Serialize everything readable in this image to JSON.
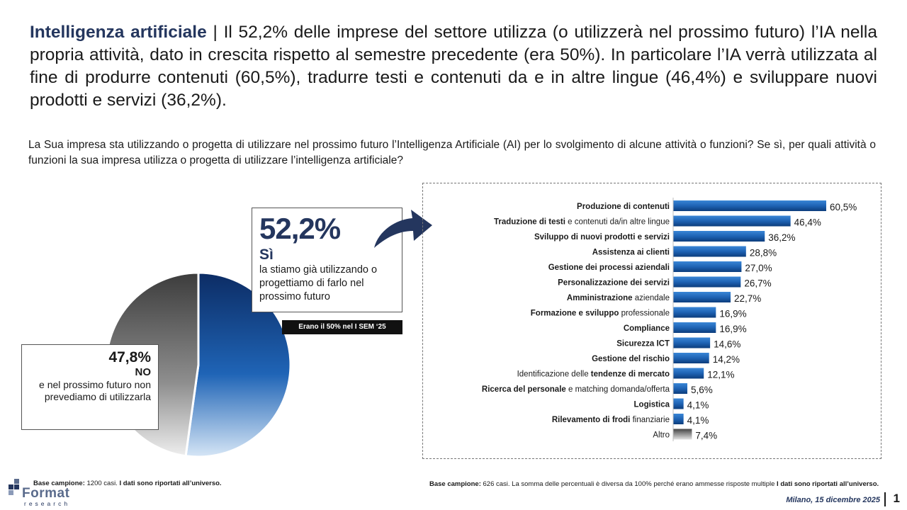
{
  "headline": {
    "keyword": "Intelligenza artificiale",
    "separator": " | ",
    "text": "Il 52,2% delle imprese del settore utilizza (o utilizzerà nel prossimo futuro) l’IA nella propria attività, dato in crescita rispetto al semestre precedente (era 50%). In particolare l’IA verrà utilizzata al fine di produrre contenuti (60,5%), tradurre testi e contenuti da e in altre lingue (46,4%) e sviluppare nuovi prodotti e servizi (36,2%)."
  },
  "question": "La Sua impresa sta utilizzando o progetta di utilizzare nel prossimo futuro l’Intelligenza Artificiale (AI) per lo svolgimento di alcune attività o funzioni? Se sì, per quali attività o funzioni la sua impresa utilizza o progetta di utilizzare l’intelligenza artificiale?",
  "yes_box": {
    "pct": "52,2%",
    "label": "Sì",
    "text": "la stiamo già utilizzando o progettiamo di farlo nel prossimo futuro"
  },
  "note": "Erano il 50% nel I SEM ‘25",
  "no_box": {
    "pct": "47,8%",
    "label": "NO",
    "text": "e nel prossimo futuro non prevediamo di utilizzarla"
  },
  "colors": {
    "dark_blue": "#24365e",
    "bar_blue": "#1e63b4",
    "pie_yes_dark": "#0c2c64",
    "pie_no_dark": "#3c3c3c"
  },
  "chart_data": [
    {
      "type": "pie",
      "slices": [
        {
          "label": "Sì",
          "value": 52.2
        },
        {
          "label": "NO",
          "value": 47.8
        }
      ]
    },
    {
      "type": "bar",
      "orientation": "horizontal",
      "xlim": [
        0,
        60.5
      ],
      "categories": [
        {
          "bold": "Produzione di contenuti",
          "rest": ""
        },
        {
          "bold": "Traduzione di testi",
          "rest": " e contenuti da/in altre lingue"
        },
        {
          "bold": "Sviluppo di nuovi prodotti e servizi",
          "rest": ""
        },
        {
          "bold": "Assistenza ai clienti",
          "rest": ""
        },
        {
          "bold": "Gestione dei processi aziendali",
          "rest": ""
        },
        {
          "bold": "Personalizzazione dei servizi",
          "rest": ""
        },
        {
          "bold": "Amministrazione",
          "rest": " aziendale"
        },
        {
          "bold": "Formazione e sviluppo",
          "rest": " professionale"
        },
        {
          "bold": "Compliance",
          "rest": ""
        },
        {
          "bold": "Sicurezza ICT",
          "rest": ""
        },
        {
          "bold": "Gestione del rischio",
          "rest": ""
        },
        {
          "pre": "Identificazione delle ",
          "bold": "tendenze di mercato",
          "rest": ""
        },
        {
          "bold": "Ricerca del personale",
          "rest": " e matching domanda/offerta"
        },
        {
          "bold": "Logistica",
          "rest": ""
        },
        {
          "bold": "Rilevamento di frodi",
          "rest": " finanziarie"
        },
        {
          "bold": "",
          "rest": "Altro"
        }
      ],
      "values": [
        60.5,
        46.4,
        36.2,
        28.8,
        27.0,
        26.7,
        22.7,
        16.9,
        16.9,
        14.6,
        14.2,
        12.1,
        5.6,
        4.1,
        4.1,
        7.4
      ],
      "value_labels": [
        "60,5%",
        "46,4%",
        "36,2%",
        "28,8%",
        "27,0%",
        "26,7%",
        "22,7%",
        "16,9%",
        "16,9%",
        "14,6%",
        "14,2%",
        "12,1%",
        "5,6%",
        "4,1%",
        "4,1%",
        "7,4%"
      ],
      "highlight_last_gray": true
    }
  ],
  "base_left": {
    "label": "Base campione:",
    "count": " 1200 casi. ",
    "bold_text": "I dati sono riportati all’universo."
  },
  "base_right": {
    "label": "Base campione:",
    "text": " 626 casi. La somma delle percentuali è diversa da 100% perché erano ammesse risposte multiple ",
    "bold_text": "I dati sono riportati all’universo."
  },
  "logo": {
    "word": "Format",
    "sub": "research"
  },
  "footer_date": "Milano, 15 dicembre 2025",
  "page_number": "1"
}
